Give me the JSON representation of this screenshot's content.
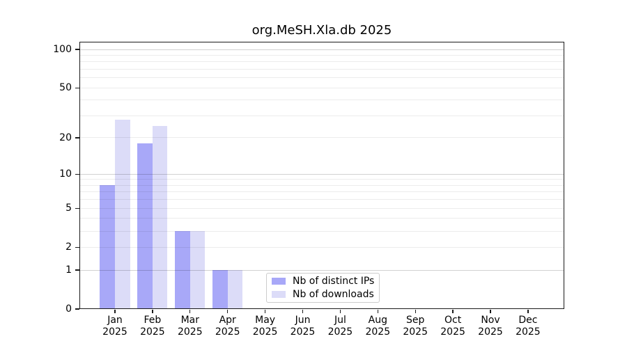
{
  "chart_data": {
    "type": "bar",
    "title": "org.MeSH.Xla.db 2025",
    "categories": [
      "Jan",
      "Feb",
      "Mar",
      "Apr",
      "May",
      "Jun",
      "Jul",
      "Aug",
      "Sep",
      "Oct",
      "Nov",
      "Dec"
    ],
    "x_tick_year": "2025",
    "series": [
      {
        "name": "Nb of distinct IPs",
        "color": "#a8a8f8",
        "values": [
          8,
          18,
          3,
          1,
          0,
          0,
          0,
          0,
          0,
          0,
          0,
          0
        ]
      },
      {
        "name": "Nb of downloads",
        "color": "#dcdcf8",
        "values": [
          28,
          25,
          3,
          1,
          0,
          0,
          0,
          0,
          0,
          0,
          0,
          0
        ]
      }
    ],
    "yscale": "log1p",
    "ylim": [
      0,
      100
    ],
    "yticks": [
      0,
      1,
      2,
      5,
      10,
      20,
      50,
      100
    ],
    "grid": "horizontal",
    "legend_position": "inside-bottom-center",
    "xlabel": "",
    "ylabel": ""
  },
  "colors": {
    "axis": "#1a1a1a",
    "grid_minor_hex": "#ededed",
    "grid_major_hex": "#d1d1d1",
    "background": "#ffffff"
  }
}
